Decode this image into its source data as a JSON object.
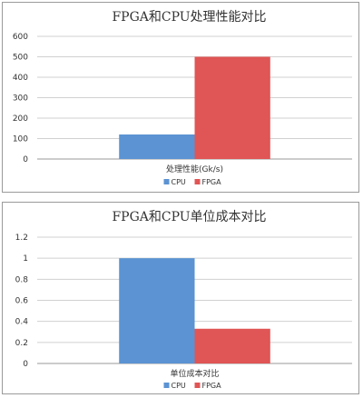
{
  "colors": {
    "cpu": "#5b93d3",
    "fpga": "#e05555"
  },
  "chart_data": [
    {
      "type": "bar",
      "title": "FPGA和CPU处理性能对比",
      "categories": [
        "处理性能(Gk/s)"
      ],
      "series": [
        {
          "name": "CPU",
          "values": [
            120
          ]
        },
        {
          "name": "FPGA",
          "values": [
            500
          ]
        }
      ],
      "ylim": [
        0,
        600
      ],
      "yticks": [
        "0",
        "100",
        "200",
        "300",
        "400",
        "500",
        "600"
      ],
      "grid": true,
      "legend": "bottom"
    },
    {
      "type": "bar",
      "title": "FPGA和CPU单位成本对比",
      "categories": [
        "单位成本对比"
      ],
      "series": [
        {
          "name": "CPU",
          "values": [
            1
          ]
        },
        {
          "name": "FPGA",
          "values": [
            0.33
          ]
        }
      ],
      "ylim": [
        0,
        1.2
      ],
      "yticks": [
        "0",
        "0.2",
        "0.4",
        "0.6",
        "0.8",
        "1",
        "1.2"
      ],
      "grid": true,
      "legend": "bottom"
    }
  ]
}
